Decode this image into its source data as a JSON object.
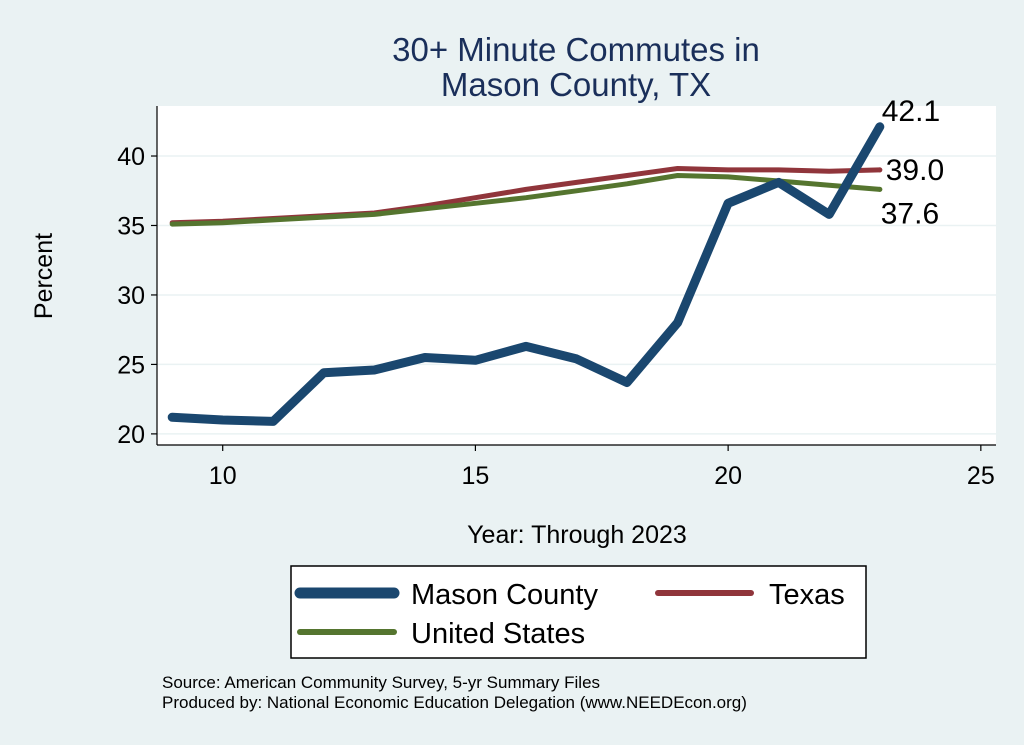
{
  "chart_data": {
    "type": "line",
    "title_lines": [
      "30+ Minute Commutes in",
      "Mason County, TX"
    ],
    "xlabel": "Year: Through 2023",
    "ylabel": "Percent",
    "xlim": [
      8.7,
      25.3
    ],
    "ylim": [
      19.2,
      43.6
    ],
    "xticks": [
      10,
      15,
      20,
      25
    ],
    "yticks": [
      20,
      25,
      30,
      35,
      40
    ],
    "grid": true,
    "legend_position": "bottom",
    "series": [
      {
        "name": "Mason County",
        "color": "#1a476f",
        "x": [
          9,
          10,
          11,
          12,
          13,
          14,
          15,
          16,
          17,
          18,
          19,
          20,
          21,
          22,
          23
        ],
        "y": [
          21.2,
          21.0,
          20.9,
          24.4,
          24.6,
          25.5,
          25.3,
          26.3,
          25.4,
          23.7,
          28.0,
          36.6,
          38.1,
          35.8,
          42.1
        ],
        "end_label": "42.1"
      },
      {
        "name": "Texas",
        "color": "#90353b",
        "x": [
          9,
          10,
          11,
          12,
          13,
          14,
          15,
          16,
          17,
          18,
          19,
          20,
          21,
          22,
          23
        ],
        "y": [
          35.2,
          35.3,
          35.5,
          35.7,
          35.9,
          36.4,
          37.0,
          37.6,
          38.1,
          38.6,
          39.1,
          39.0,
          39.0,
          38.9,
          39.0
        ],
        "end_label": "39.0"
      },
      {
        "name": "United States",
        "color": "#55752f",
        "x": [
          9,
          10,
          11,
          12,
          13,
          14,
          15,
          16,
          17,
          18,
          19,
          20,
          21,
          22,
          23
        ],
        "y": [
          35.1,
          35.2,
          35.4,
          35.6,
          35.8,
          36.2,
          36.6,
          37.0,
          37.5,
          38.0,
          38.6,
          38.5,
          38.2,
          37.9,
          37.6
        ],
        "end_label": "37.6"
      }
    ],
    "notes": [
      "Source: American Community Survey, 5-yr Summary Files",
      "Produced by: National Economic Education Delegation (www.NEEDEcon.org)"
    ]
  }
}
